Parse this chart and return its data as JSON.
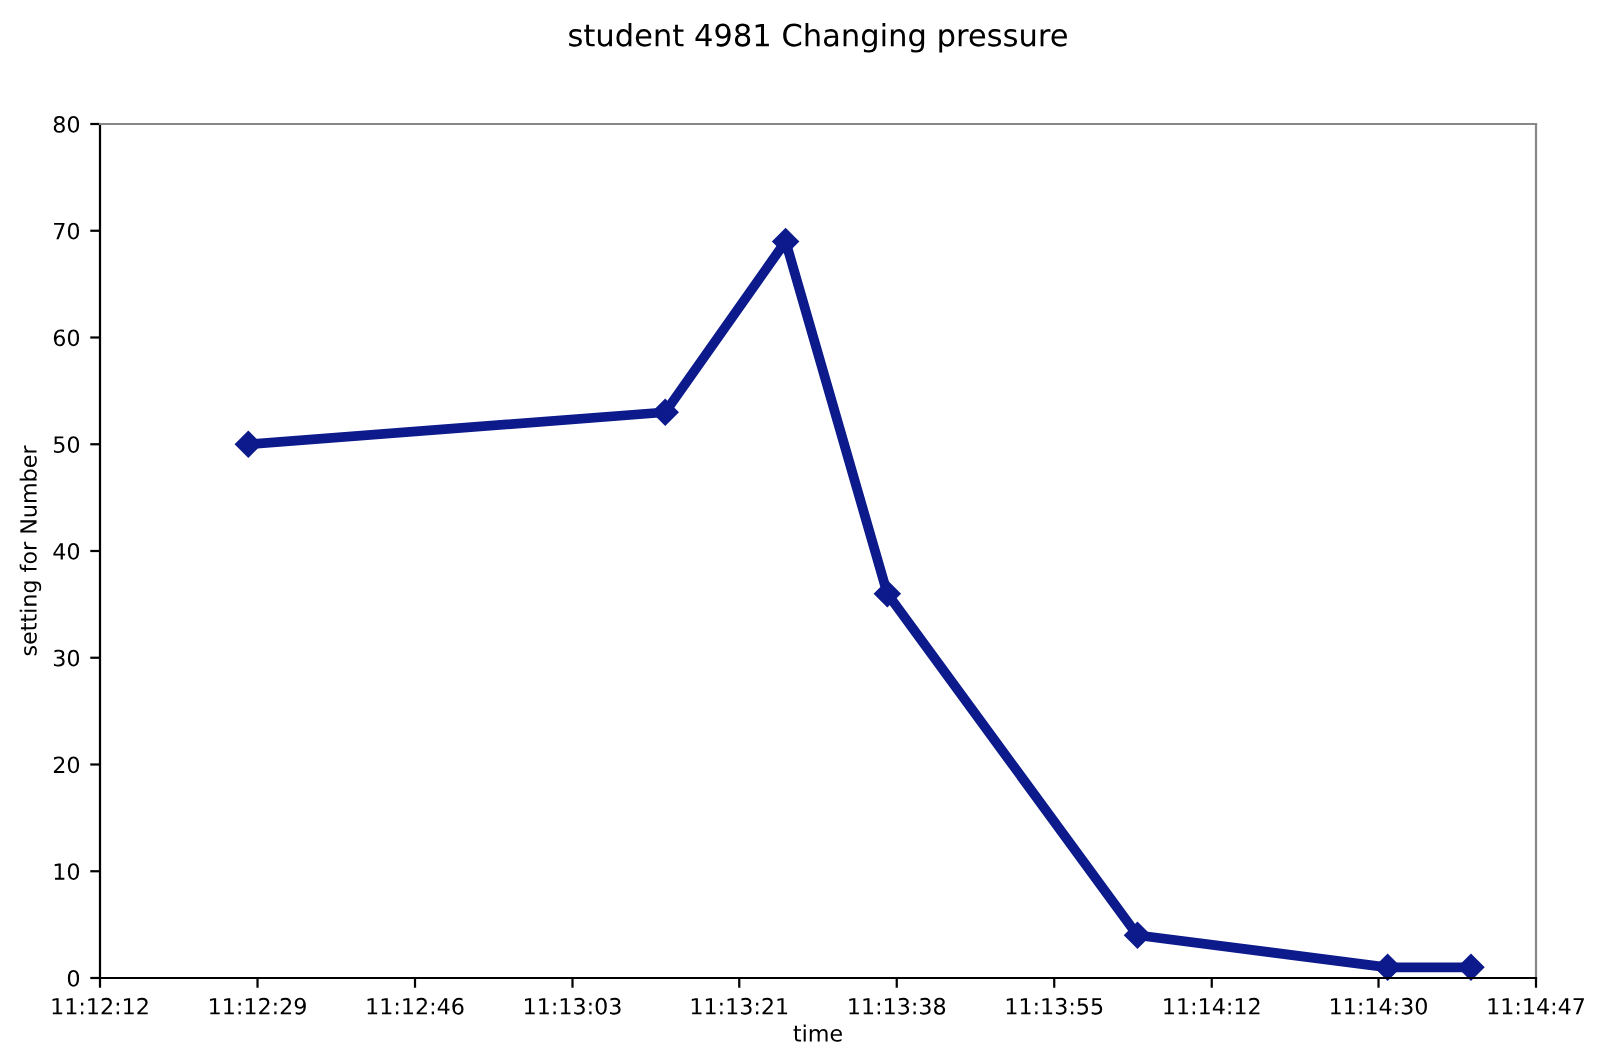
{
  "chart_data": {
    "type": "line",
    "title": "student 4981 Changing pressure",
    "xlabel": "time",
    "ylabel": "setting for Number",
    "x": [
      11.20778,
      11.22028,
      11.22389,
      11.22694,
      11.23444,
      11.24194,
      11.24444
    ],
    "series": [
      {
        "color": "#0c1a8c",
        "values": [
          50,
          53,
          69,
          36,
          4,
          1,
          1
        ]
      }
    ],
    "xlim": [
      11.203333,
      11.246389
    ],
    "xticks": [
      {
        "value": 11.203333,
        "label": "11:12:12"
      },
      {
        "value": 11.208056,
        "label": "11:12:29"
      },
      {
        "value": 11.212778,
        "label": "11:12:46"
      },
      {
        "value": 11.2175,
        "label": "11:13:03"
      },
      {
        "value": 11.2225,
        "label": "11:13:21"
      },
      {
        "value": 11.227222,
        "label": "11:13:38"
      },
      {
        "value": 11.231944,
        "label": "11:13:55"
      },
      {
        "value": 11.236667,
        "label": "11:14:12"
      },
      {
        "value": 11.241667,
        "label": "11:14:30"
      },
      {
        "value": 11.246389,
        "label": "11:14:47"
      }
    ],
    "ylim": [
      0,
      80
    ],
    "yticks": [
      0,
      10,
      20,
      30,
      40,
      50,
      60,
      70,
      80
    ],
    "grid": false,
    "legend": false,
    "marker": "diamond",
    "line_style": "solid"
  }
}
